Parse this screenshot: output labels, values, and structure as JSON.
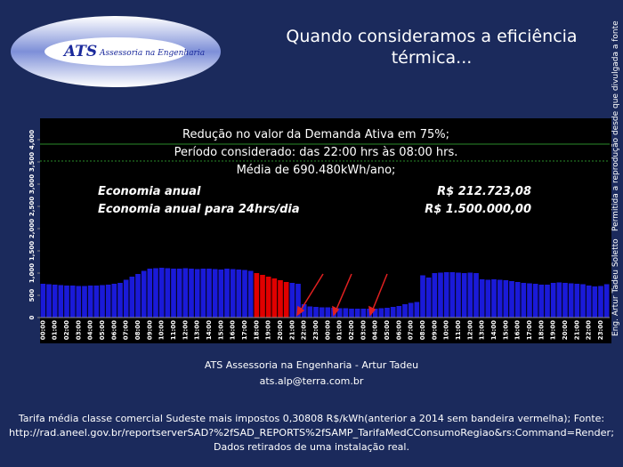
{
  "slide_title": "Quando consideramos a eficiência térmica...",
  "logo": {
    "mark": "ATS",
    "text": "Assessoria na Engenharia"
  },
  "side_text": [
    "Eng. Artur Tadeu Soletto",
    "Permitida a reprodução desde que divulgada a fonte"
  ],
  "footer": [
    "ATS Assessoria na Engenharia - Artur Tadeu",
    "ats.alp@terra.com.br",
    "Tarifa média classe comercial Sudeste mais impostos 0,30808 R$/kWh(anterior a 2014 sem bandeira vermelha); Fonte:",
    "http://rad.aneel.gov.br/reportserverSAD?%2fSAD_REPORTS%2fSAMP_TarifaMedCConsumoRegiao&rs:Command=Render;",
    "Dados retirados de uma instalação real."
  ],
  "chart_data": {
    "type": "bar",
    "annotations": [
      "Redução no valor da Demanda Ativa  em 75%;",
      "Período considerado: das 22:00 hrs às 08:00 hrs.",
      "Média de 690.480kWh/ano;"
    ],
    "savings": [
      [
        "Economia anual",
        "R$ 212.723,08"
      ],
      [
        "Economia anual para  24hrs/dia",
        "R$ 1.500.000,00"
      ]
    ],
    "categories": [
      "00:00",
      null,
      "01:00",
      null,
      "02:00",
      null,
      "03:00",
      null,
      "04:00",
      null,
      "05:00",
      null,
      "06:00",
      null,
      "07:00",
      null,
      "08:00",
      null,
      "09:00",
      null,
      "10:00",
      null,
      "11:00",
      null,
      "12:00",
      null,
      "13:00",
      null,
      "14:00",
      null,
      "15:00",
      null,
      "16:00",
      null,
      "17:00",
      null,
      "18:00",
      null,
      "19:00",
      null,
      "20:00",
      null,
      "21:00",
      null,
      "22:00",
      null,
      "23:00",
      null,
      "00:00",
      null,
      "01:00",
      null,
      "02:00",
      null,
      "03:00",
      null,
      "04:00",
      null,
      "05:00",
      null,
      "06:00",
      null,
      "07:00",
      null,
      "08:00",
      null,
      "09:00",
      null,
      "10:00",
      null,
      "11:00",
      null,
      "12:00",
      null,
      "13:00",
      null,
      "14:00",
      null,
      "15:00",
      null,
      "16:00",
      null,
      "17:00",
      null,
      "18:00",
      null,
      "19:00",
      null,
      "20:00",
      null,
      "21:00",
      null,
      "22:00",
      null,
      "23:00",
      null
    ],
    "values": [
      760,
      750,
      740,
      730,
      720,
      720,
      710,
      710,
      720,
      720,
      730,
      740,
      760,
      780,
      850,
      920,
      980,
      1050,
      1100,
      1110,
      1120,
      1110,
      1100,
      1100,
      1110,
      1100,
      1090,
      1100,
      1100,
      1090,
      1080,
      1100,
      1090,
      1080,
      1070,
      1050,
      1000,
      960,
      920,
      880,
      840,
      800,
      780,
      760,
      300,
      250,
      240,
      230,
      230,
      220,
      210,
      210,
      200,
      200,
      200,
      200,
      200,
      210,
      220,
      240,
      260,
      300,
      330,
      350,
      950,
      900,
      1000,
      1010,
      1020,
      1020,
      1010,
      1000,
      1010,
      1000,
      860,
      850,
      860,
      850,
      840,
      820,
      800,
      780,
      770,
      760,
      740,
      740,
      780,
      790,
      780,
      770,
      760,
      750,
      720,
      700,
      710,
      750
    ],
    "color": "#1a1ad8",
    "highlight_color": "#e00000",
    "highlight_indices": [
      36,
      37,
      38,
      39,
      40,
      41
    ],
    "reference_lines": [
      3900,
      3520
    ],
    "reference_color": "#2a8a2a",
    "ylim": [
      0,
      4000
    ],
    "yticks": [
      {
        "value": 0,
        "label": "0"
      },
      {
        "value": 500,
        "label": "500"
      },
      {
        "value": 1000,
        "label": "1,000"
      },
      {
        "value": 1500,
        "label": "1,500"
      },
      {
        "value": 2000,
        "label": "2,000"
      },
      {
        "value": 2500,
        "label": "2,500"
      },
      {
        "value": 3000,
        "label": "3,000"
      },
      {
        "value": 3500,
        "label": "3,500"
      },
      {
        "value": 4000,
        "label": "4,000"
      }
    ]
  }
}
